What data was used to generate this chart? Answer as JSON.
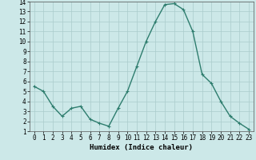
{
  "x": [
    0,
    1,
    2,
    3,
    4,
    5,
    6,
    7,
    8,
    9,
    10,
    11,
    12,
    13,
    14,
    15,
    16,
    17,
    18,
    19,
    20,
    21,
    22,
    23
  ],
  "y": [
    5.5,
    5.0,
    3.5,
    2.5,
    3.3,
    3.5,
    2.2,
    1.8,
    1.5,
    3.3,
    5.0,
    7.5,
    10.0,
    12.0,
    13.7,
    13.8,
    13.2,
    11.0,
    6.7,
    5.8,
    4.0,
    2.5,
    1.8,
    1.2
  ],
  "line_color": "#2e7d6e",
  "marker": "+",
  "markersize": 3,
  "linewidth": 1.0,
  "xlabel": "Humidex (Indice chaleur)",
  "xlim": [
    -0.5,
    23.5
  ],
  "ylim": [
    1,
    14
  ],
  "yticks": [
    1,
    2,
    3,
    4,
    5,
    6,
    7,
    8,
    9,
    10,
    11,
    12,
    13,
    14
  ],
  "xticks": [
    0,
    1,
    2,
    3,
    4,
    5,
    6,
    7,
    8,
    9,
    10,
    11,
    12,
    13,
    14,
    15,
    16,
    17,
    18,
    19,
    20,
    21,
    22,
    23
  ],
  "bg_color": "#cce8e8",
  "grid_color": "#aacccc",
  "tick_fontsize": 5.5,
  "xlabel_fontsize": 6.5
}
